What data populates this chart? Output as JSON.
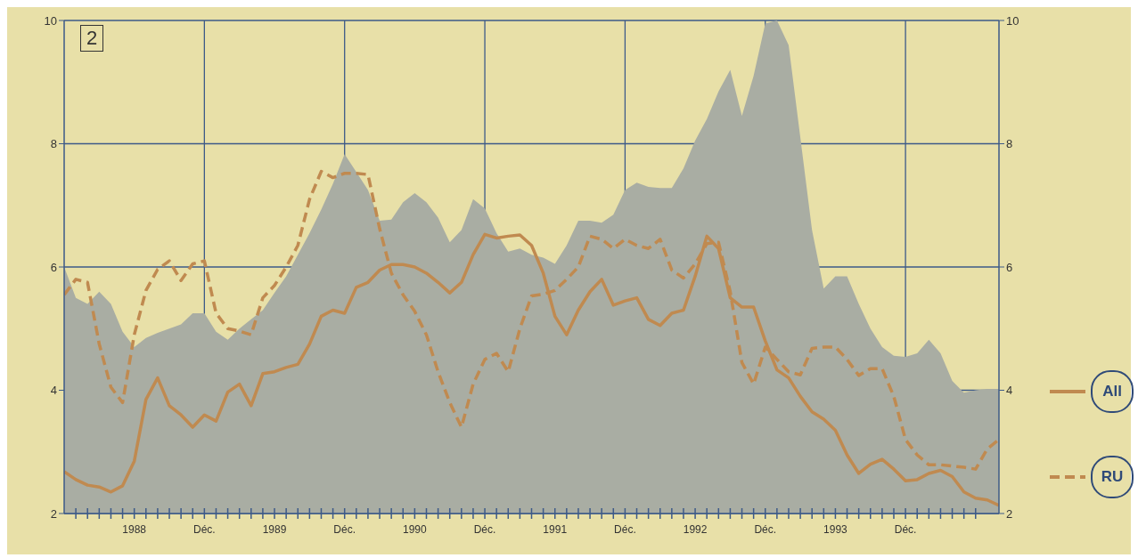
{
  "chart_data": {
    "type": "line",
    "x": [
      "1987-12",
      "1988-01",
      "1988-02",
      "1988-03",
      "1988-04",
      "1988-05",
      "1988-06",
      "1988-07",
      "1988-08",
      "1988-09",
      "1988-10",
      "1988-11",
      "1988-12",
      "1989-01",
      "1989-02",
      "1989-03",
      "1989-04",
      "1989-05",
      "1989-06",
      "1989-07",
      "1989-08",
      "1989-09",
      "1989-10",
      "1989-11",
      "1989-12",
      "1990-01",
      "1990-02",
      "1990-03",
      "1990-04",
      "1990-05",
      "1990-06",
      "1990-07",
      "1990-08",
      "1990-09",
      "1990-10",
      "1990-11",
      "1990-12",
      "1991-01",
      "1991-02",
      "1991-03",
      "1991-04",
      "1991-05",
      "1991-06",
      "1991-07",
      "1991-08",
      "1991-09",
      "1991-10",
      "1991-11",
      "1991-12",
      "1992-01",
      "1992-02",
      "1992-03",
      "1992-04",
      "1992-05",
      "1992-06",
      "1992-07",
      "1992-08",
      "1992-09",
      "1992-10",
      "1992-11",
      "1992-12",
      "1993-01",
      "1993-02",
      "1993-03",
      "1993-04",
      "1993-05",
      "1993-06",
      "1993-07",
      "1993-08",
      "1993-09",
      "1993-10",
      "1993-11",
      "1993-12",
      "1994-01",
      "1994-02",
      "1994-03",
      "1994-04",
      "1994-05",
      "1994-06",
      "1994-07",
      "1994-08"
    ],
    "series": [
      {
        "type": "area",
        "color": "#a9ada3",
        "values": [
          6.0,
          5.5,
          5.4,
          5.6,
          5.4,
          4.95,
          4.7,
          4.85,
          4.93,
          5.0,
          5.07,
          5.25,
          5.25,
          4.95,
          4.82,
          5.0,
          5.15,
          5.3,
          5.58,
          5.85,
          6.2,
          6.55,
          6.93,
          7.35,
          7.83,
          7.54,
          7.25,
          6.75,
          6.77,
          7.05,
          7.2,
          7.05,
          6.8,
          6.4,
          6.6,
          7.1,
          6.95,
          6.55,
          6.25,
          6.3,
          6.2,
          6.15,
          6.05,
          6.35,
          6.75,
          6.75,
          6.72,
          6.85,
          7.25,
          7.37,
          7.3,
          7.28,
          7.28,
          7.6,
          8.05,
          8.4,
          8.85,
          9.2,
          8.45,
          9.1,
          9.95,
          10.0,
          9.6,
          8.1,
          6.6,
          5.65,
          5.85,
          5.85,
          5.4,
          5.0,
          4.7,
          4.56,
          4.54,
          4.6,
          4.82,
          4.6,
          4.15,
          3.96,
          4.0,
          4.02,
          4.02
        ]
      },
      {
        "name": "All",
        "color": "#c08a50",
        "line_style": "solid",
        "values": [
          2.68,
          2.55,
          2.46,
          2.43,
          2.35,
          2.45,
          2.85,
          3.85,
          4.2,
          3.75,
          3.6,
          3.4,
          3.6,
          3.5,
          3.97,
          4.1,
          3.75,
          4.27,
          4.3,
          4.37,
          4.42,
          4.75,
          5.2,
          5.3,
          5.25,
          5.67,
          5.75,
          5.95,
          6.04,
          6.04,
          6.0,
          5.9,
          5.75,
          5.58,
          5.75,
          6.2,
          6.53,
          6.47,
          6.5,
          6.52,
          6.35,
          5.9,
          5.2,
          4.9,
          5.3,
          5.6,
          5.8,
          5.38,
          5.45,
          5.5,
          5.15,
          5.05,
          5.25,
          5.3,
          5.85,
          6.5,
          6.3,
          5.5,
          5.35,
          5.35,
          4.8,
          4.33,
          4.2,
          3.9,
          3.65,
          3.53,
          3.35,
          2.95,
          2.65,
          2.8,
          2.88,
          2.72,
          2.53,
          2.55,
          2.65,
          2.7,
          2.6,
          2.35,
          2.25,
          2.22,
          2.13
        ]
      },
      {
        "name": "RU",
        "color": "#c08a50",
        "line_style": "dashed",
        "values": [
          5.55,
          5.8,
          5.75,
          4.75,
          4.05,
          3.8,
          4.9,
          5.62,
          5.96,
          6.1,
          5.78,
          6.05,
          6.1,
          5.25,
          5.0,
          4.96,
          4.9,
          5.5,
          5.7,
          6.0,
          6.35,
          7.1,
          7.55,
          7.45,
          7.52,
          7.52,
          7.5,
          6.62,
          5.9,
          5.55,
          5.28,
          4.9,
          4.3,
          3.8,
          3.4,
          4.1,
          4.5,
          4.6,
          4.3,
          5.0,
          5.53,
          5.56,
          5.62,
          5.8,
          6.0,
          6.5,
          6.45,
          6.3,
          6.45,
          6.35,
          6.3,
          6.45,
          5.95,
          5.82,
          6.05,
          6.38,
          6.4,
          5.6,
          4.45,
          4.1,
          4.7,
          4.5,
          4.3,
          4.25,
          4.68,
          4.7,
          4.7,
          4.5,
          4.24,
          4.35,
          4.35,
          3.9,
          3.2,
          2.95,
          2.79,
          2.79,
          2.77,
          2.75,
          2.72,
          3.05,
          3.2
        ]
      }
    ],
    "xlim": [
      "1987-12",
      "1994-08"
    ],
    "xticks": [
      {
        "value": "1988-01",
        "label": null
      },
      {
        "value": "1988-02",
        "label": null
      },
      {
        "value": "1988-03",
        "label": null
      },
      {
        "value": "1988-04",
        "label": null
      },
      {
        "value": "1988-05",
        "label": null
      },
      {
        "value": "1988-06",
        "label": "1988"
      },
      {
        "value": "1988-07",
        "label": null
      },
      {
        "value": "1988-08",
        "label": null
      },
      {
        "value": "1988-09",
        "label": null
      },
      {
        "value": "1988-10",
        "label": null
      },
      {
        "value": "1988-11",
        "label": null
      },
      {
        "value": "1988-12",
        "label": "Déc."
      },
      {
        "value": "1989-01",
        "label": null
      },
      {
        "value": "1989-02",
        "label": null
      },
      {
        "value": "1989-03",
        "label": null
      },
      {
        "value": "1989-04",
        "label": null
      },
      {
        "value": "1989-05",
        "label": null
      },
      {
        "value": "1989-06",
        "label": "1989"
      },
      {
        "value": "1989-07",
        "label": null
      },
      {
        "value": "1989-08",
        "label": null
      },
      {
        "value": "1989-09",
        "label": null
      },
      {
        "value": "1989-10",
        "label": null
      },
      {
        "value": "1989-11",
        "label": null
      },
      {
        "value": "1989-12",
        "label": "Déc."
      },
      {
        "value": "1990-01",
        "label": null
      },
      {
        "value": "1990-02",
        "label": null
      },
      {
        "value": "1990-03",
        "label": null
      },
      {
        "value": "1990-04",
        "label": null
      },
      {
        "value": "1990-05",
        "label": null
      },
      {
        "value": "1990-06",
        "label": "1990"
      },
      {
        "value": "1990-07",
        "label": null
      },
      {
        "value": "1990-08",
        "label": null
      },
      {
        "value": "1990-09",
        "label": null
      },
      {
        "value": "1990-10",
        "label": null
      },
      {
        "value": "1990-11",
        "label": null
      },
      {
        "value": "1990-12",
        "label": "Déc."
      },
      {
        "value": "1991-01",
        "label": null
      },
      {
        "value": "1991-02",
        "label": null
      },
      {
        "value": "1991-03",
        "label": null
      },
      {
        "value": "1991-04",
        "label": null
      },
      {
        "value": "1991-05",
        "label": null
      },
      {
        "value": "1991-06",
        "label": "1991"
      },
      {
        "value": "1991-07",
        "label": null
      },
      {
        "value": "1991-08",
        "label": null
      },
      {
        "value": "1991-09",
        "label": null
      },
      {
        "value": "1991-10",
        "label": null
      },
      {
        "value": "1991-11",
        "label": null
      },
      {
        "value": "1991-12",
        "label": "Déc."
      },
      {
        "value": "1992-01",
        "label": null
      },
      {
        "value": "1992-02",
        "label": null
      },
      {
        "value": "1992-03",
        "label": null
      },
      {
        "value": "1992-04",
        "label": null
      },
      {
        "value": "1992-05",
        "label": null
      },
      {
        "value": "1992-06",
        "label": "1992"
      },
      {
        "value": "1992-07",
        "label": null
      },
      {
        "value": "1992-08",
        "label": null
      },
      {
        "value": "1992-09",
        "label": null
      },
      {
        "value": "1992-10",
        "label": null
      },
      {
        "value": "1992-11",
        "label": null
      },
      {
        "value": "1992-12",
        "label": "Déc."
      },
      {
        "value": "1993-01",
        "label": null
      },
      {
        "value": "1993-02",
        "label": null
      },
      {
        "value": "1993-03",
        "label": null
      },
      {
        "value": "1993-04",
        "label": null
      },
      {
        "value": "1993-05",
        "label": null
      },
      {
        "value": "1993-06",
        "label": "1993"
      },
      {
        "value": "1993-07",
        "label": null
      },
      {
        "value": "1993-08",
        "label": null
      },
      {
        "value": "1993-09",
        "label": null
      },
      {
        "value": "1993-10",
        "label": null
      },
      {
        "value": "1993-11",
        "label": null
      },
      {
        "value": "1993-12",
        "label": "Déc."
      },
      {
        "value": "1994-01",
        "label": null
      },
      {
        "value": "1994-02",
        "label": null
      },
      {
        "value": "1994-03",
        "label": null
      },
      {
        "value": "1994-04",
        "label": null
      },
      {
        "value": "1994-05",
        "label": null
      },
      {
        "value": "1994-06",
        "label": null
      }
    ],
    "ylim": [
      2,
      10
    ],
    "yticks": [
      2,
      4,
      6,
      8,
      10
    ],
    "y2lim": [
      2,
      10
    ],
    "y2ticks": [
      2,
      4,
      6,
      8,
      10
    ],
    "grid": true,
    "legend": "right",
    "annotations": [
      "2"
    ]
  }
}
